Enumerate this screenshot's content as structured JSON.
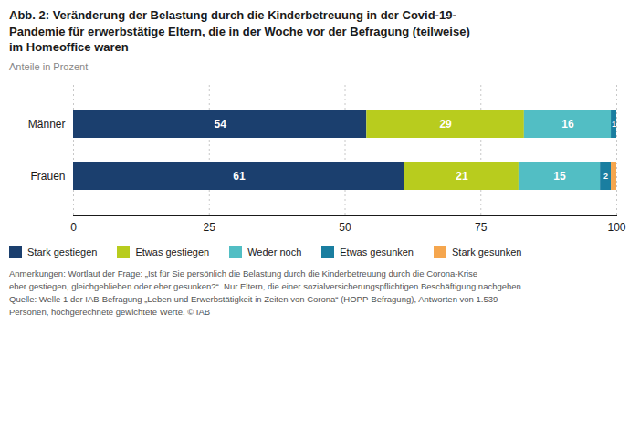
{
  "chart_data": {
    "type": "bar",
    "orientation": "horizontal",
    "stacked": true,
    "title": "Abb. 2: Veränderung der Belastung durch die Kinderbetreuung in der Covid-19-\nPandemie für erwerbstätige Eltern, die in der Woche vor der Befragung (teilweise)\nim Homeoffice waren",
    "subtitle": "Anteile in Prozent",
    "categories": [
      "Männer",
      "Frauen"
    ],
    "series": [
      {
        "name": "Stark gestiegen",
        "color": "#1b3f6e",
        "values": [
          54,
          61
        ]
      },
      {
        "name": "Etwas gestiegen",
        "color": "#b8cc1e",
        "values": [
          29,
          21
        ]
      },
      {
        "name": "Weder noch",
        "color": "#52bec4",
        "values": [
          16,
          15
        ]
      },
      {
        "name": "Etwas gesunken",
        "color": "#1a7ea0",
        "values": [
          1,
          2
        ]
      },
      {
        "name": "Stark gesunken",
        "color": "#f5a64e",
        "values": [
          0,
          1
        ],
        "value_labels": [
          null,
          null
        ]
      }
    ],
    "xlim": [
      0,
      100
    ],
    "xticks": [
      0,
      25,
      50,
      75,
      100
    ],
    "grid": true,
    "legend": "bottom",
    "data_labels": true,
    "annotation": "Anmerkungen: Wortlaut der Frage: „Ist für Sie persönlich die Belastung durch die Kinderbetreuung durch die Corona-Krise\neher gestiegen, gleichgeblieben oder eher gesunken?“. Nur Eltern, die einer sozialversicherungspflichtigen Beschäftigung nachgehen.\nQuelle: Welle 1 der IAB-Befragung „Leben und Erwerbstätigkeit in Zeiten von Corona“ (HOPP-Befragung), Antworten von 1.539\nPersonen, hochgerechnete gewichtete Werte. © IAB"
  }
}
